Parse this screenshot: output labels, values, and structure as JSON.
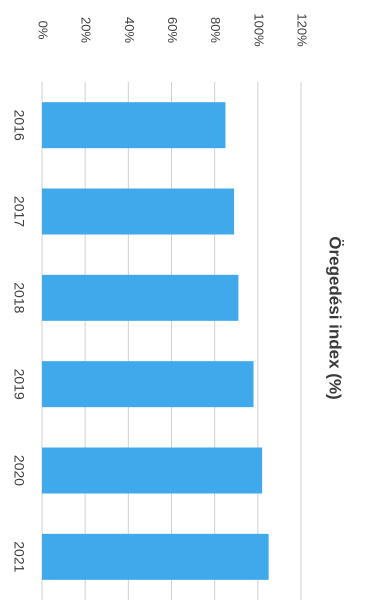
{
  "chart_data": {
    "type": "bar",
    "title": "Öregedési index (%)",
    "xlabel": "",
    "ylabel": "",
    "categories": [
      "2016",
      "2017",
      "2018",
      "2019",
      "2020",
      "2021"
    ],
    "values": [
      85,
      89,
      91,
      98,
      102,
      105
    ],
    "ylim": [
      0,
      120
    ],
    "y_ticks": [
      "0%",
      "20%",
      "40%",
      "60%",
      "80%",
      "100%",
      "120%"
    ],
    "grid": true,
    "legend": "none",
    "bar_color": "#3fa9ec",
    "grid_color": "#d0d0d0",
    "text_color": "#404040",
    "orientation": "rotated 90 degrees clockwise (vertical columns drawn sideways)"
  }
}
